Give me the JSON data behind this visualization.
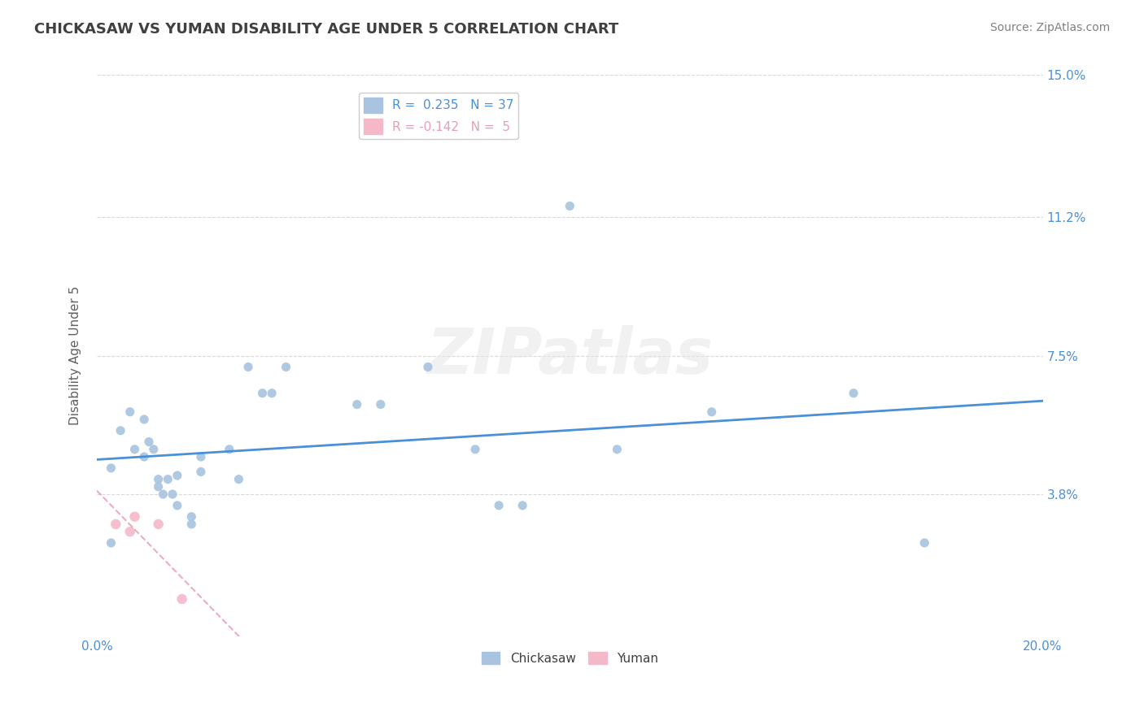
{
  "title": "CHICKASAW VS YUMAN DISABILITY AGE UNDER 5 CORRELATION CHART",
  "source": "Source: ZipAtlas.com",
  "ylabel": "Disability Age Under 5",
  "xlim": [
    0.0,
    0.2
  ],
  "ylim": [
    0.0,
    0.15
  ],
  "xtick_positions": [
    0.0,
    0.2
  ],
  "xtick_labels": [
    "0.0%",
    "20.0%"
  ],
  "ytick_values": [
    0.038,
    0.075,
    0.112,
    0.15
  ],
  "ytick_labels": [
    "3.8%",
    "7.5%",
    "11.2%",
    "15.0%"
  ],
  "watermark": "ZIPatlas",
  "legend_r_labels": [
    "R =  0.235   N = 37",
    "R = -0.142   N =  5"
  ],
  "legend_r_colors": [
    "#a8c4e0",
    "#f4b8c8"
  ],
  "legend_r_text_colors": [
    "#4a90d9",
    "#e8a0b0"
  ],
  "legend_bottom_labels": [
    "Chickasaw",
    "Yuman"
  ],
  "legend_bottom_colors": [
    "#a8c4e0",
    "#f4b8c8"
  ],
  "chickasaw_points": [
    [
      0.003,
      0.045
    ],
    [
      0.003,
      0.025
    ],
    [
      0.005,
      0.055
    ],
    [
      0.007,
      0.06
    ],
    [
      0.008,
      0.05
    ],
    [
      0.01,
      0.058
    ],
    [
      0.01,
      0.048
    ],
    [
      0.011,
      0.052
    ],
    [
      0.012,
      0.05
    ],
    [
      0.013,
      0.042
    ],
    [
      0.013,
      0.04
    ],
    [
      0.014,
      0.038
    ],
    [
      0.015,
      0.042
    ],
    [
      0.016,
      0.038
    ],
    [
      0.017,
      0.043
    ],
    [
      0.017,
      0.035
    ],
    [
      0.02,
      0.03
    ],
    [
      0.02,
      0.032
    ],
    [
      0.022,
      0.048
    ],
    [
      0.022,
      0.044
    ],
    [
      0.028,
      0.05
    ],
    [
      0.03,
      0.042
    ],
    [
      0.032,
      0.072
    ],
    [
      0.035,
      0.065
    ],
    [
      0.037,
      0.065
    ],
    [
      0.04,
      0.072
    ],
    [
      0.055,
      0.062
    ],
    [
      0.06,
      0.062
    ],
    [
      0.07,
      0.072
    ],
    [
      0.08,
      0.05
    ],
    [
      0.085,
      0.035
    ],
    [
      0.09,
      0.035
    ],
    [
      0.1,
      0.115
    ],
    [
      0.11,
      0.05
    ],
    [
      0.13,
      0.06
    ],
    [
      0.16,
      0.065
    ],
    [
      0.175,
      0.025
    ]
  ],
  "yuman_points": [
    [
      0.004,
      0.03
    ],
    [
      0.007,
      0.028
    ],
    [
      0.008,
      0.032
    ],
    [
      0.013,
      0.03
    ],
    [
      0.018,
      0.01
    ]
  ],
  "chickasaw_color": "#a8c4e0",
  "yuman_color": "#f4b8c8",
  "trendline_chickasaw_color": "#4a90d9",
  "trendline_yuman_color": "#e8a0b0",
  "grid_color": "#d8d8d8",
  "bg_color": "#ffffff",
  "title_color": "#404040",
  "axis_label_color": "#606060",
  "tick_label_color": "#4a90d9",
  "source_color": "#808080",
  "title_fontsize": 13,
  "axis_label_fontsize": 11,
  "tick_fontsize": 11,
  "legend_fontsize": 11,
  "source_fontsize": 10
}
